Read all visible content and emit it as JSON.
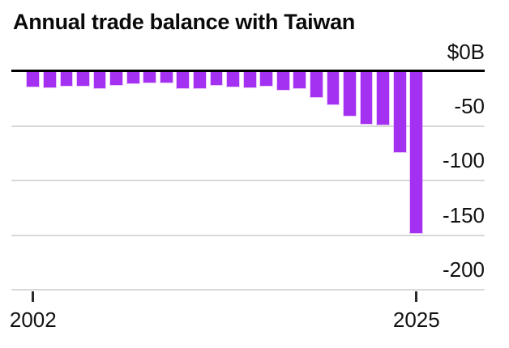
{
  "chart": {
    "colors": {
      "bar": "#a431f1",
      "zero_line": "#000000",
      "gridline": "#d8d8d8",
      "text": "#111111",
      "background": "#ffffff"
    }
  },
  "chart_data": {
    "type": "bar",
    "title": "Annual trade balance with Taiwan",
    "categories": [
      "2002",
      "2003",
      "2004",
      "2005",
      "2006",
      "2007",
      "2008",
      "2009",
      "2010",
      "2011",
      "2012",
      "2013",
      "2014",
      "2015",
      "2016",
      "2017",
      "2018",
      "2019",
      "2020",
      "2021",
      "2022",
      "2023",
      "2024",
      "2025"
    ],
    "values": [
      -13.8,
      -14.2,
      -12.9,
      -12.8,
      -15.2,
      -12.3,
      -11.0,
      -9.9,
      -9.8,
      -15.4,
      -15.1,
      -12.2,
      -13.9,
      -14.8,
      -13.3,
      -16.7,
      -15.2,
      -23.1,
      -29.9,
      -40.2,
      -48.0,
      -48.3,
      -73.9,
      -148
    ],
    "unit_suffix": "B",
    "ylim": [
      -200,
      0
    ],
    "y_ticks": [
      {
        "label": "$0B",
        "value": 0
      },
      {
        "label": "-50",
        "value": -50
      },
      {
        "label": "-100",
        "value": -100
      },
      {
        "label": "-150",
        "value": -150
      },
      {
        "label": "-200",
        "value": -200
      }
    ],
    "x_ticks": [
      {
        "label": "2002",
        "category_index": 0
      },
      {
        "label": "2025",
        "category_index": 23
      }
    ],
    "grid": true,
    "legend": false
  }
}
